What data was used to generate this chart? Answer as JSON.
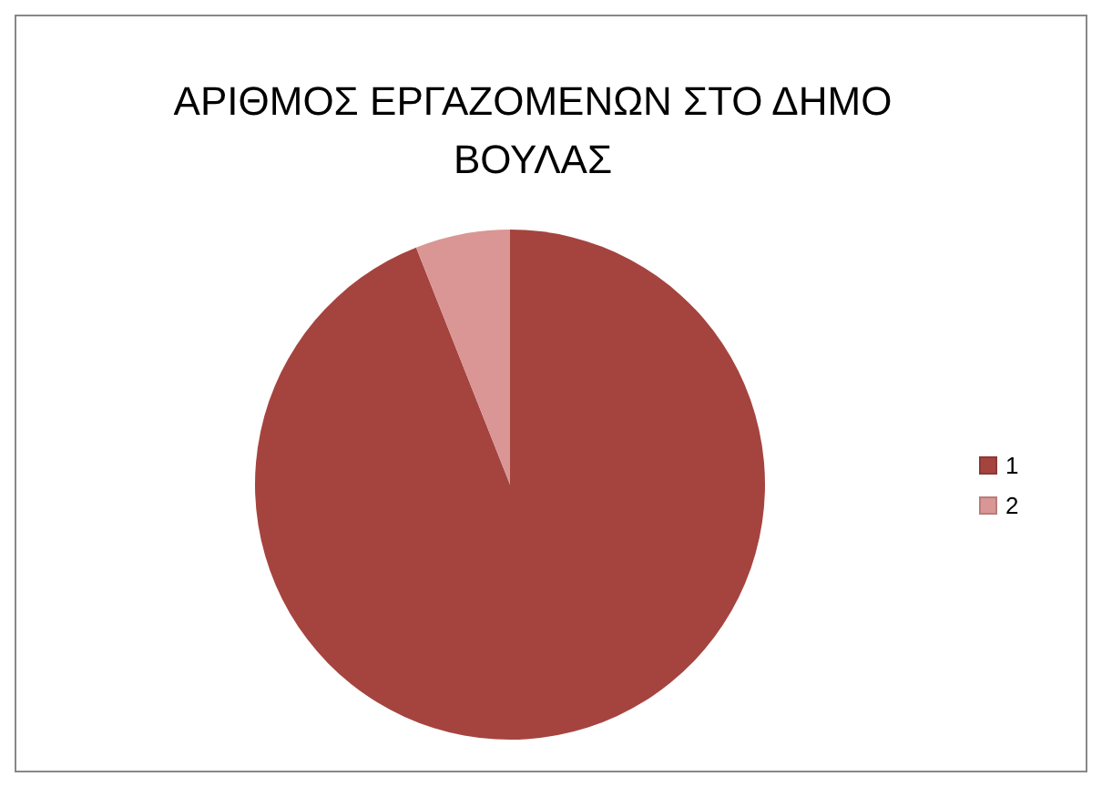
{
  "chart_data": {
    "type": "pie",
    "title": "ΑΡΙΘΜΟΣ ΕΡΓΑΖΟΜΕΝΩΝ ΣΤΟ ΔΗΜΟ ΒΟΥΛΑΣ",
    "categories": [
      "1",
      "2"
    ],
    "values": [
      94,
      6
    ],
    "colors": [
      "#a5443f",
      "#d99694"
    ],
    "legend": "right"
  }
}
